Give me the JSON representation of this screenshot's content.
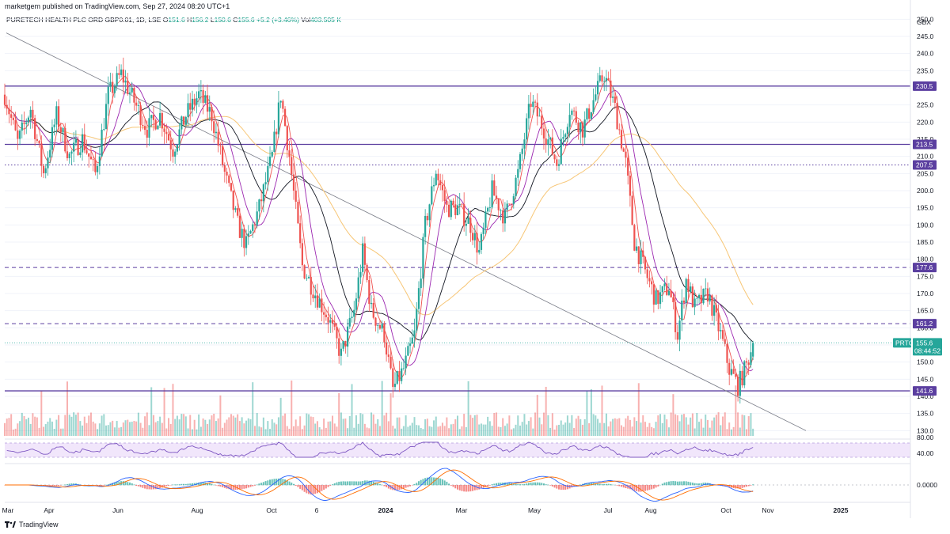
{
  "header": {
    "published": "marketgem published on TradingView.com, Sep 27, 2024 08:20 UTC+1"
  },
  "legend": {
    "symbol": "PURETECH HEALTH PLC ORD GBP0.01, 1D, LSE",
    "o_label": "O",
    "o": "151.6",
    "h_label": "H",
    "h": "156.2",
    "l_label": "L",
    "l": "150.6",
    "c_label": "C",
    "c": "155.6",
    "change": "+5.2 (+3.46%)",
    "vol_label": "Vol",
    "vol": "403.505 K"
  },
  "currency": "GBX",
  "footer": {
    "brand": "TradingView"
  },
  "colors": {
    "up": "#26a69a",
    "down": "#ef5350",
    "level": "#5b3fa0",
    "ma_fast": "#ef5350",
    "ma_mid": "#9c27b0",
    "ma_slow": "#131722",
    "ma_long": "#f7c676",
    "rsi_band": "#f1e6fb",
    "rsi_line": "#7e57c2",
    "macd_line": "#2962ff",
    "signal_line": "#ff6d00"
  },
  "chart_data": {
    "type": "candlestick",
    "y_ticks": [
      130,
      135,
      140,
      145,
      150,
      155,
      160,
      165,
      170,
      175,
      180,
      185,
      190,
      195,
      200,
      205,
      210,
      215,
      220,
      225,
      230,
      235,
      240,
      245,
      250
    ],
    "ylim": [
      128,
      251
    ],
    "x_tick_labels": [
      "Mar",
      "Apr",
      "Jun",
      "Aug",
      "Oct",
      "6",
      "2024",
      "Mar",
      "May",
      "Jul",
      "Aug",
      "Oct",
      "Nov",
      "2025"
    ],
    "x_tick_bold": [
      "2024",
      "2025"
    ],
    "levels": [
      {
        "value": 230.5,
        "label": "230.5",
        "style": "solid"
      },
      {
        "value": 213.5,
        "label": "213.5",
        "style": "solid"
      },
      {
        "value": 207.5,
        "label": "207.5",
        "style": "dotted"
      },
      {
        "value": 177.6,
        "label": "177.6",
        "style": "dashed"
      },
      {
        "value": 161.2,
        "label": "161.2",
        "style": "dashed"
      },
      {
        "value": 141.6,
        "label": "141.6",
        "style": "solid"
      }
    ],
    "last_price": {
      "symbol": "PRTC",
      "value": "155.6",
      "countdown": "08:44:52"
    },
    "trendline": {
      "from": [
        "2023-03",
        246
      ],
      "to": [
        "2024-10",
        130
      ]
    },
    "price_waypoints": [
      [
        0,
        228
      ],
      [
        6,
        214
      ],
      [
        12,
        224
      ],
      [
        18,
        205
      ],
      [
        24,
        222
      ],
      [
        30,
        210
      ],
      [
        36,
        215
      ],
      [
        42,
        205
      ],
      [
        48,
        228
      ],
      [
        54,
        234
      ],
      [
        60,
        226
      ],
      [
        66,
        218
      ],
      [
        72,
        222
      ],
      [
        78,
        212
      ],
      [
        84,
        222
      ],
      [
        90,
        228
      ],
      [
        96,
        222
      ],
      [
        102,
        205
      ],
      [
        108,
        190
      ],
      [
        112,
        184
      ],
      [
        118,
        195
      ],
      [
        124,
        210
      ],
      [
        128,
        228
      ],
      [
        132,
        210
      ],
      [
        138,
        178
      ],
      [
        144,
        170
      ],
      [
        150,
        163
      ],
      [
        156,
        152
      ],
      [
        162,
        165
      ],
      [
        166,
        182
      ],
      [
        170,
        165
      ],
      [
        176,
        158
      ],
      [
        180,
        142
      ],
      [
        185,
        148
      ],
      [
        190,
        158
      ],
      [
        195,
        190
      ],
      [
        200,
        206
      ],
      [
        205,
        195
      ],
      [
        210,
        195
      ],
      [
        216,
        190
      ],
      [
        220,
        182
      ],
      [
        226,
        200
      ],
      [
        232,
        192
      ],
      [
        238,
        205
      ],
      [
        244,
        226
      ],
      [
        250,
        218
      ],
      [
        256,
        208
      ],
      [
        262,
        224
      ],
      [
        268,
        218
      ],
      [
        274,
        228
      ],
      [
        278,
        234
      ],
      [
        283,
        224
      ],
      [
        288,
        208
      ],
      [
        292,
        185
      ],
      [
        296,
        178
      ],
      [
        302,
        168
      ],
      [
        308,
        172
      ],
      [
        312,
        158
      ],
      [
        316,
        174
      ],
      [
        320,
        166
      ],
      [
        326,
        170
      ],
      [
        332,
        158
      ],
      [
        336,
        148
      ],
      [
        340,
        143
      ],
      [
        344,
        149
      ],
      [
        347,
        155.6
      ]
    ],
    "x_range": [
      0,
      420
    ],
    "data_end": 347,
    "oscillators": {
      "rsi": {
        "ticks": [
          "80.00",
          "40.00"
        ],
        "band": [
          30,
          70
        ]
      },
      "macd": {
        "ticks": [
          "0.0000"
        ]
      }
    }
  }
}
